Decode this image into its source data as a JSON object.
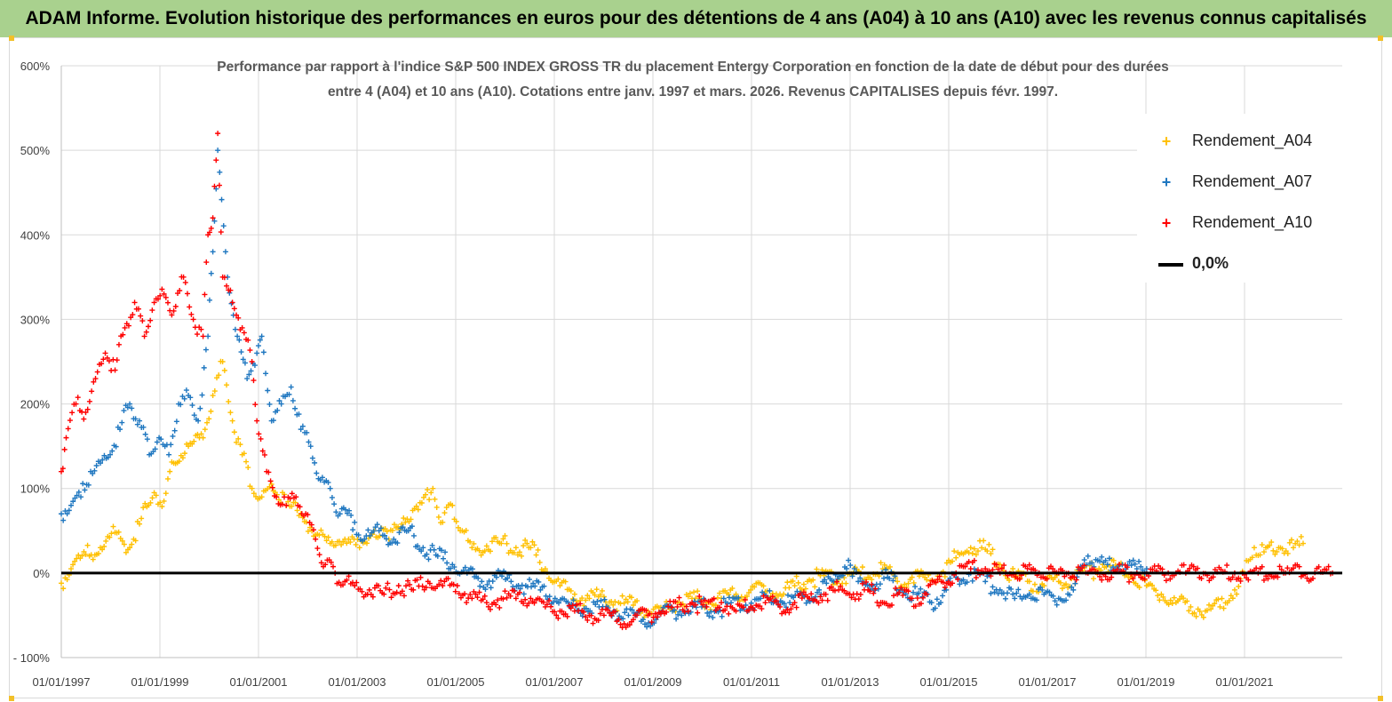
{
  "banner": {
    "text": "ADAM Informe. Evolution historique des performances en euros pour des détentions de 4 ans (A04) à 10 ans (A10) avec les revenus connus capitalisés"
  },
  "colors": {
    "banner_bg": "#a9d18e",
    "a04": "#ffc000",
    "a07": "#1f77c0",
    "a10": "#ff0000",
    "zero": "#000000",
    "grid": "#d9d9d9",
    "corner_accent": "#f2c029"
  },
  "chart_data": {
    "type": "scatter",
    "title_line1": "Performance par rapport à l'indice S&P 500 INDEX GROSS TR  du placement Entergy Corporation en fonction de la date de début pour des durées",
    "title_line2": "entre 4 (A04) et 10 ans (A10). Cotations entre janv. 1997 et mars. 2026. Revenus CAPITALISES depuis févr. 1997.",
    "y_ticks": [
      "600%",
      "500%",
      "400%",
      "300%",
      "200%",
      "100%",
      "0%",
      "- 100%"
    ],
    "x_ticks": [
      "01/01/1997",
      "01/01/1999",
      "01/01/2001",
      "01/01/2003",
      "01/01/2005",
      "01/01/2007",
      "01/01/2009",
      "01/01/2011",
      "01/01/2013",
      "01/01/2015",
      "01/01/2017",
      "01/01/2019",
      "01/01/2021"
    ],
    "ylim": [
      -100,
      600
    ],
    "xlim": [
      1997.0,
      2023.2
    ],
    "grid": "vertical and horizontal gridlines",
    "legend_position": "top-right",
    "series": [
      {
        "name": "Rendement_A04",
        "marker": "+",
        "points": [
          [
            1997.0,
            -12
          ],
          [
            1997.2,
            5
          ],
          [
            1997.5,
            22
          ],
          [
            1997.8,
            30
          ],
          [
            1998.1,
            48
          ],
          [
            1998.4,
            30
          ],
          [
            1998.6,
            58
          ],
          [
            1998.9,
            95
          ],
          [
            1999.1,
            85
          ],
          [
            1999.3,
            130
          ],
          [
            1999.6,
            150
          ],
          [
            1999.9,
            160
          ],
          [
            2000.1,
            210
          ],
          [
            2000.3,
            250
          ],
          [
            2000.5,
            180
          ],
          [
            2000.7,
            140
          ],
          [
            2000.9,
            100
          ],
          [
            2001.1,
            90
          ],
          [
            2001.3,
            105
          ],
          [
            2001.6,
            80
          ],
          [
            2001.9,
            70
          ],
          [
            2002.2,
            45
          ],
          [
            2002.5,
            35
          ],
          [
            2002.8,
            40
          ],
          [
            2003.1,
            30
          ],
          [
            2003.4,
            50
          ],
          [
            2003.7,
            40
          ],
          [
            2004.0,
            65
          ],
          [
            2004.3,
            75
          ],
          [
            2004.6,
            100
          ],
          [
            2004.8,
            60
          ],
          [
            2005.0,
            80
          ],
          [
            2005.2,
            50
          ],
          [
            2005.4,
            30
          ],
          [
            2005.7,
            32
          ],
          [
            2006.0,
            35
          ],
          [
            2006.3,
            30
          ],
          [
            2006.6,
            30
          ],
          [
            2006.9,
            5
          ],
          [
            2007.2,
            -15
          ],
          [
            2007.5,
            -25
          ],
          [
            2007.8,
            -30
          ],
          [
            2008.1,
            -28
          ],
          [
            2008.4,
            -35
          ],
          [
            2008.7,
            -38
          ],
          [
            2009.0,
            -45
          ],
          [
            2009.3,
            -45
          ],
          [
            2009.6,
            -35
          ],
          [
            2009.9,
            -30
          ],
          [
            2010.2,
            -35
          ],
          [
            2010.5,
            -30
          ],
          [
            2010.8,
            -25
          ],
          [
            2011.1,
            -20
          ],
          [
            2011.4,
            -22
          ],
          [
            2011.7,
            -25
          ],
          [
            2012.0,
            -15
          ],
          [
            2012.3,
            -8
          ],
          [
            2012.6,
            -3
          ],
          [
            2012.9,
            -8
          ],
          [
            2013.2,
            0
          ],
          [
            2013.5,
            -5
          ],
          [
            2013.8,
            5
          ],
          [
            2014.1,
            -10
          ],
          [
            2014.4,
            -5
          ],
          [
            2014.7,
            -8
          ],
          [
            2015.0,
            0
          ],
          [
            2015.3,
            18
          ],
          [
            2015.6,
            30
          ],
          [
            2015.9,
            28
          ],
          [
            2016.2,
            10
          ],
          [
            2016.5,
            -5
          ],
          [
            2016.8,
            -10
          ],
          [
            2017.1,
            -15
          ],
          [
            2017.4,
            -10
          ],
          [
            2017.7,
            -5
          ],
          [
            2018.0,
            0
          ],
          [
            2018.3,
            10
          ],
          [
            2018.6,
            5
          ],
          [
            2018.9,
            -5
          ],
          [
            2019.2,
            -15
          ],
          [
            2019.5,
            -25
          ],
          [
            2019.8,
            -35
          ],
          [
            2020.1,
            -40
          ],
          [
            2020.4,
            -45
          ],
          [
            2020.7,
            -40
          ],
          [
            2021.0,
            -20
          ],
          [
            2021.2,
            0
          ],
          [
            2021.4,
            30
          ],
          [
            2021.6,
            25
          ],
          [
            2021.9,
            30
          ],
          [
            2022.2,
            30
          ],
          [
            2022.4,
            35
          ]
        ]
      },
      {
        "name": "Rendement_A07",
        "marker": "+",
        "points": [
          [
            1997.0,
            70
          ],
          [
            1997.2,
            80
          ],
          [
            1997.4,
            90
          ],
          [
            1997.6,
            120
          ],
          [
            1997.8,
            130
          ],
          [
            1998.0,
            140
          ],
          [
            1998.2,
            170
          ],
          [
            1998.4,
            200
          ],
          [
            1998.6,
            180
          ],
          [
            1998.8,
            140
          ],
          [
            1999.0,
            160
          ],
          [
            1999.2,
            140
          ],
          [
            1999.4,
            200
          ],
          [
            1999.6,
            210
          ],
          [
            1999.8,
            180
          ],
          [
            2000.0,
            280
          ],
          [
            2000.1,
            380
          ],
          [
            2000.2,
            500
          ],
          [
            2000.4,
            350
          ],
          [
            2000.6,
            280
          ],
          [
            2000.8,
            230
          ],
          [
            2001.0,
            260
          ],
          [
            2001.1,
            280
          ],
          [
            2001.3,
            180
          ],
          [
            2001.5,
            200
          ],
          [
            2001.7,
            220
          ],
          [
            2001.9,
            170
          ],
          [
            2002.1,
            150
          ],
          [
            2002.3,
            110
          ],
          [
            2002.5,
            100
          ],
          [
            2002.7,
            70
          ],
          [
            2003.0,
            60
          ],
          [
            2003.2,
            40
          ],
          [
            2003.5,
            50
          ],
          [
            2003.8,
            40
          ],
          [
            2004.1,
            50
          ],
          [
            2004.4,
            30
          ],
          [
            2004.7,
            20
          ],
          [
            2005.0,
            10
          ],
          [
            2005.3,
            0
          ],
          [
            2005.6,
            -10
          ],
          [
            2005.9,
            -5
          ],
          [
            2006.2,
            -10
          ],
          [
            2006.5,
            -15
          ],
          [
            2006.8,
            -20
          ],
          [
            2007.1,
            -30
          ],
          [
            2007.4,
            -40
          ],
          [
            2007.7,
            -42
          ],
          [
            2008.0,
            -40
          ],
          [
            2008.3,
            -45
          ],
          [
            2008.6,
            -50
          ],
          [
            2008.9,
            -55
          ],
          [
            2009.2,
            -52
          ],
          [
            2009.5,
            -45
          ],
          [
            2009.8,
            -45
          ],
          [
            2010.1,
            -40
          ],
          [
            2010.4,
            -45
          ],
          [
            2010.7,
            -35
          ],
          [
            2011.0,
            -38
          ],
          [
            2011.3,
            -30
          ],
          [
            2011.6,
            -32
          ],
          [
            2011.9,
            -35
          ],
          [
            2012.2,
            -28
          ],
          [
            2012.5,
            -20
          ],
          [
            2012.8,
            -10
          ],
          [
            2013.1,
            15
          ],
          [
            2013.3,
            -10
          ],
          [
            2013.6,
            -15
          ],
          [
            2013.9,
            -5
          ],
          [
            2014.2,
            -20
          ],
          [
            2014.5,
            -25
          ],
          [
            2014.8,
            -35
          ],
          [
            2015.1,
            -20
          ],
          [
            2015.3,
            -5
          ],
          [
            2015.6,
            0
          ],
          [
            2015.9,
            -10
          ],
          [
            2016.2,
            -20
          ],
          [
            2016.5,
            -30
          ],
          [
            2016.8,
            -25
          ],
          [
            2017.1,
            -25
          ],
          [
            2017.4,
            -30
          ],
          [
            2017.7,
            -20
          ],
          [
            2018.0,
            20
          ],
          [
            2018.2,
            15
          ],
          [
            2018.4,
            10
          ],
          [
            2018.7,
            10
          ],
          [
            2019.0,
            5
          ],
          [
            2019.2,
            5
          ]
        ]
      },
      {
        "name": "Rendement_A10",
        "marker": "+",
        "points": [
          [
            1997.0,
            120
          ],
          [
            1997.1,
            160
          ],
          [
            1997.3,
            200
          ],
          [
            1997.5,
            190
          ],
          [
            1997.7,
            230
          ],
          [
            1997.9,
            260
          ],
          [
            1998.1,
            240
          ],
          [
            1998.3,
            290
          ],
          [
            1998.5,
            320
          ],
          [
            1998.7,
            280
          ],
          [
            1998.9,
            320
          ],
          [
            1999.1,
            330
          ],
          [
            1999.3,
            310
          ],
          [
            1999.5,
            350
          ],
          [
            1999.7,
            300
          ],
          [
            1999.9,
            280
          ],
          [
            2000.0,
            400
          ],
          [
            2000.1,
            420
          ],
          [
            2000.2,
            520
          ],
          [
            2000.3,
            350
          ],
          [
            2000.5,
            320
          ],
          [
            2000.7,
            290
          ],
          [
            2000.9,
            250
          ],
          [
            2001.0,
            180
          ],
          [
            2001.2,
            120
          ],
          [
            2001.4,
            90
          ],
          [
            2001.6,
            80
          ],
          [
            2001.8,
            90
          ],
          [
            2002.0,
            70
          ],
          [
            2002.2,
            40
          ],
          [
            2002.4,
            10
          ],
          [
            2002.6,
            0
          ],
          [
            2002.8,
            -10
          ],
          [
            2003.0,
            -15
          ],
          [
            2003.3,
            -20
          ],
          [
            2003.6,
            -25
          ],
          [
            2003.9,
            -15
          ],
          [
            2004.2,
            -20
          ],
          [
            2004.5,
            -10
          ],
          [
            2004.8,
            -15
          ],
          [
            2005.1,
            -15
          ],
          [
            2005.4,
            -30
          ],
          [
            2005.7,
            -35
          ],
          [
            2006.0,
            -30
          ],
          [
            2006.3,
            -30
          ],
          [
            2006.6,
            -30
          ],
          [
            2006.9,
            -40
          ],
          [
            2007.2,
            -45
          ],
          [
            2007.5,
            -45
          ],
          [
            2007.8,
            -50
          ],
          [
            2008.1,
            -50
          ],
          [
            2008.4,
            -55
          ],
          [
            2008.7,
            -55
          ],
          [
            2009.0,
            -50
          ],
          [
            2009.3,
            -45
          ],
          [
            2009.6,
            -40
          ],
          [
            2009.9,
            -35
          ],
          [
            2010.2,
            -40
          ],
          [
            2010.5,
            -35
          ],
          [
            2010.8,
            -45
          ],
          [
            2011.1,
            -40
          ],
          [
            2011.4,
            -35
          ],
          [
            2011.7,
            -40
          ],
          [
            2012.0,
            -35
          ],
          [
            2012.3,
            -30
          ],
          [
            2012.6,
            -25
          ],
          [
            2012.9,
            -20
          ],
          [
            2013.2,
            -25
          ],
          [
            2013.5,
            -20
          ],
          [
            2013.8,
            -35
          ],
          [
            2014.1,
            -25
          ],
          [
            2014.4,
            -30
          ],
          [
            2014.7,
            -25
          ],
          [
            2015.0,
            -10
          ],
          [
            2015.3,
            0
          ],
          [
            2015.6,
            5
          ],
          [
            2015.9,
            5
          ],
          [
            2016.2,
            0
          ],
          [
            2017.0,
            0
          ],
          [
            2018.0,
            0
          ],
          [
            2019.0,
            0
          ],
          [
            2020.0,
            0
          ],
          [
            2021.0,
            0
          ],
          [
            2022.0,
            0
          ],
          [
            2023.0,
            0
          ]
        ]
      },
      {
        "name": "0,0%",
        "marker": "line",
        "points": [
          [
            1997.0,
            0
          ],
          [
            2023.2,
            0
          ]
        ]
      }
    ]
  }
}
